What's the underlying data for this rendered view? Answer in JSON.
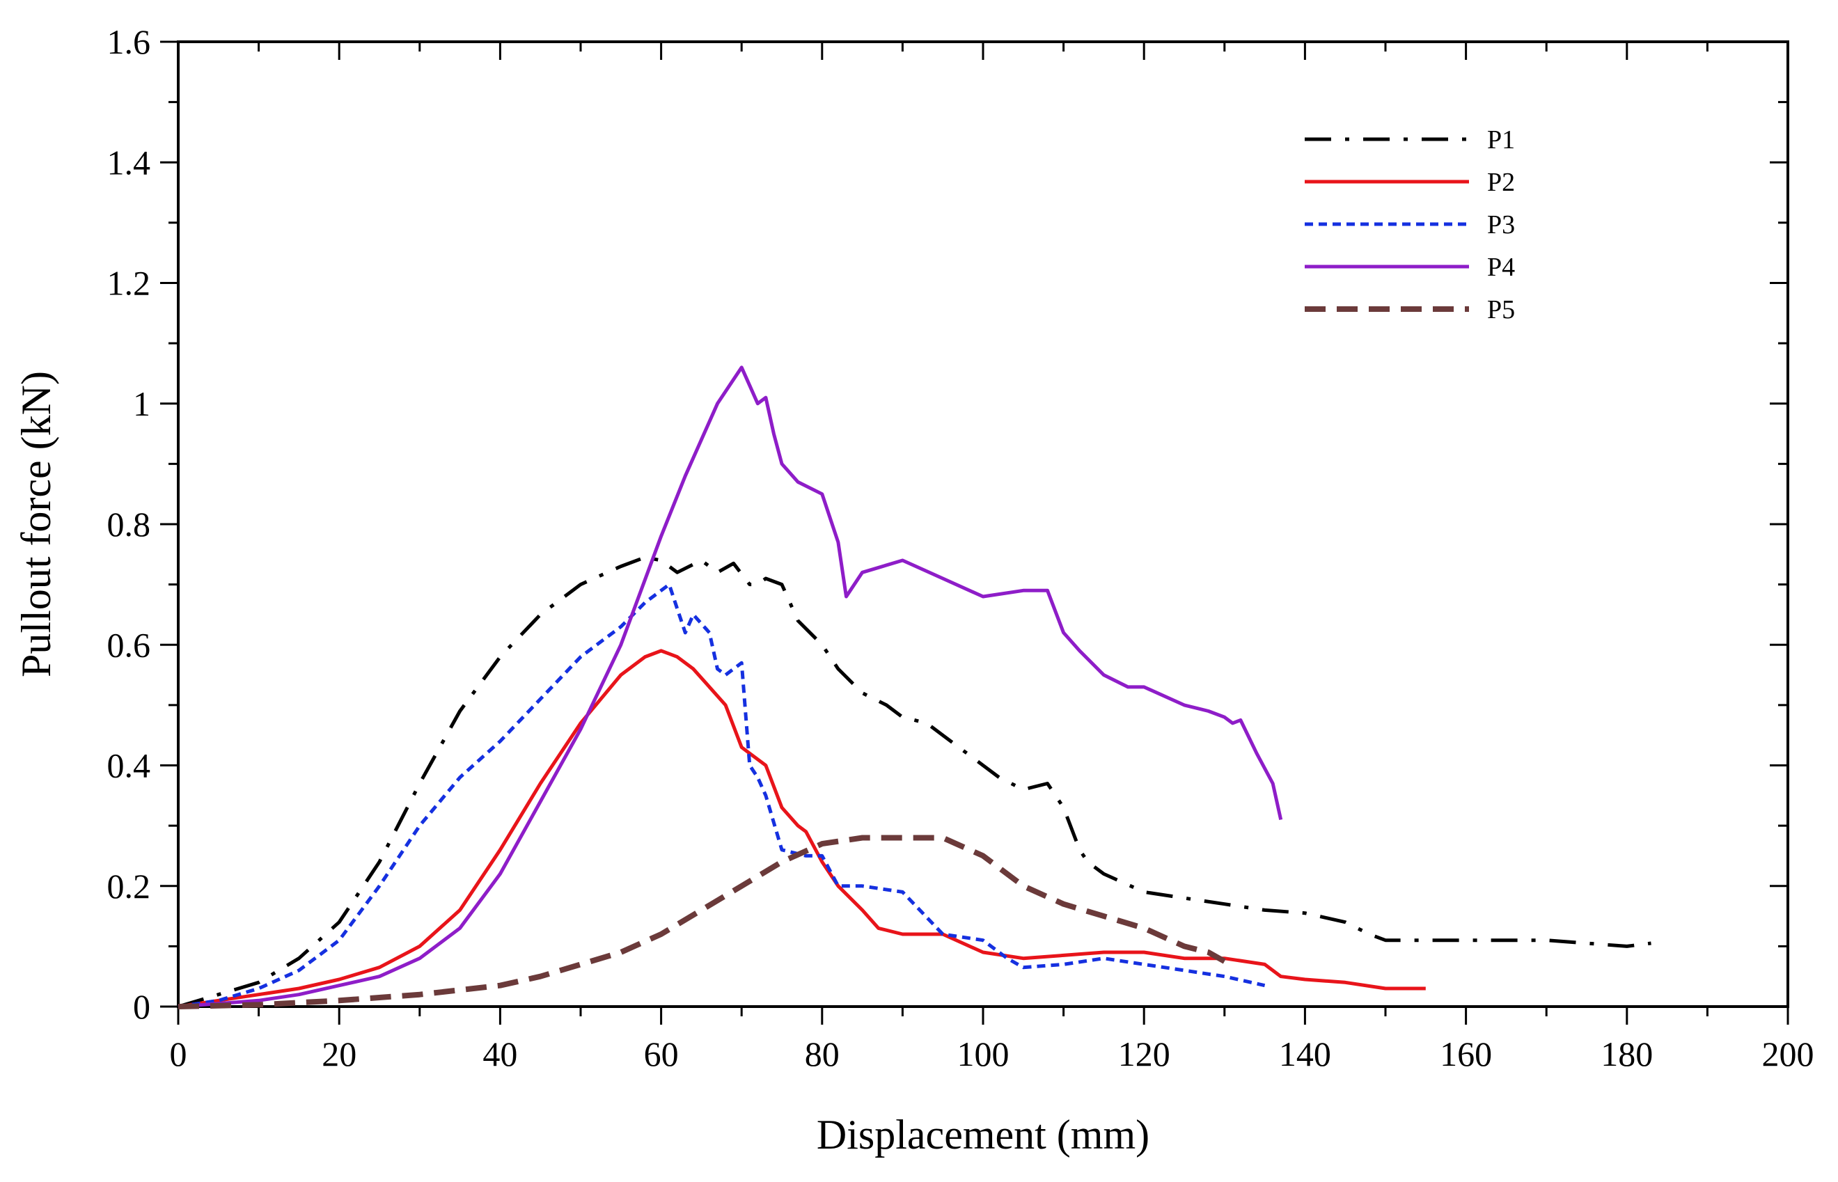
{
  "chart_data": {
    "type": "line",
    "title": "",
    "xlabel": "Displacement (mm)",
    "ylabel": "Pullout force (kN)",
    "xlim": [
      0,
      200
    ],
    "ylim": [
      0,
      1.6
    ],
    "xticks": [
      0,
      20,
      40,
      60,
      80,
      100,
      120,
      140,
      160,
      180,
      200
    ],
    "yticks": [
      0,
      0.2,
      0.4,
      0.6,
      0.8,
      1.0,
      1.2,
      1.4,
      1.6
    ],
    "xtick_labels": [
      "0",
      "20",
      "40",
      "60",
      "80",
      "100",
      "120",
      "140",
      "160",
      "180",
      "200"
    ],
    "ytick_labels": [
      "0",
      "0.2",
      "0.4",
      "0.6",
      "0.8",
      "1",
      "1.2",
      "1.4",
      "1.6"
    ],
    "grid": false,
    "legend_position": "top-right",
    "series": [
      {
        "name": "P1",
        "color": "#000000",
        "dash": "dashdot",
        "x": [
          0,
          5,
          10,
          15,
          20,
          25,
          30,
          35,
          40,
          45,
          50,
          55,
          58,
          60,
          62,
          65,
          67,
          69,
          71,
          72,
          73,
          75,
          77,
          80,
          82,
          85,
          88,
          90,
          93,
          95,
          98,
          100,
          102,
          105,
          108,
          110,
          112,
          113,
          115,
          120,
          125,
          130,
          135,
          140,
          145,
          148,
          150,
          155,
          160,
          170,
          175,
          180,
          183
        ],
        "y": [
          0,
          0.02,
          0.04,
          0.08,
          0.14,
          0.24,
          0.37,
          0.49,
          0.58,
          0.65,
          0.7,
          0.73,
          0.745,
          0.74,
          0.72,
          0.74,
          0.72,
          0.735,
          0.7,
          0.7,
          0.71,
          0.7,
          0.64,
          0.6,
          0.56,
          0.52,
          0.5,
          0.48,
          0.47,
          0.45,
          0.42,
          0.4,
          0.38,
          0.36,
          0.37,
          0.33,
          0.26,
          0.24,
          0.22,
          0.19,
          0.18,
          0.17,
          0.16,
          0.155,
          0.14,
          0.12,
          0.11,
          0.11,
          0.11,
          0.11,
          0.105,
          0.1,
          0.105
        ]
      },
      {
        "name": "P2",
        "color": "#e8141a",
        "dash": "solid",
        "x": [
          0,
          5,
          10,
          15,
          20,
          25,
          30,
          35,
          40,
          45,
          50,
          55,
          58,
          60,
          61,
          62,
          64,
          66,
          68,
          70,
          71,
          73,
          75,
          77,
          78,
          80,
          82,
          85,
          87,
          90,
          95,
          100,
          105,
          110,
          115,
          120,
          125,
          130,
          135,
          137,
          140,
          145,
          150,
          155
        ],
        "y": [
          0,
          0.01,
          0.02,
          0.03,
          0.045,
          0.065,
          0.1,
          0.16,
          0.26,
          0.37,
          0.47,
          0.55,
          0.58,
          0.59,
          0.585,
          0.58,
          0.56,
          0.53,
          0.5,
          0.43,
          0.42,
          0.4,
          0.33,
          0.3,
          0.29,
          0.24,
          0.2,
          0.16,
          0.13,
          0.12,
          0.12,
          0.09,
          0.08,
          0.085,
          0.09,
          0.09,
          0.08,
          0.08,
          0.07,
          0.05,
          0.045,
          0.04,
          0.03,
          0.03
        ]
      },
      {
        "name": "P3",
        "color": "#1530e0",
        "dash": "dotted",
        "x": [
          0,
          5,
          10,
          15,
          20,
          25,
          30,
          35,
          40,
          45,
          50,
          55,
          58,
          60,
          61,
          62,
          63,
          64,
          66,
          67,
          68,
          70,
          71,
          72,
          73,
          75,
          78,
          80,
          82,
          85,
          90,
          95,
          100,
          103,
          105,
          110,
          115,
          120,
          125,
          130,
          135
        ],
        "y": [
          0,
          0.01,
          0.03,
          0.06,
          0.11,
          0.2,
          0.3,
          0.38,
          0.44,
          0.51,
          0.58,
          0.63,
          0.67,
          0.69,
          0.7,
          0.66,
          0.62,
          0.65,
          0.62,
          0.56,
          0.55,
          0.57,
          0.4,
          0.38,
          0.35,
          0.26,
          0.25,
          0.25,
          0.2,
          0.2,
          0.19,
          0.12,
          0.11,
          0.08,
          0.065,
          0.07,
          0.08,
          0.07,
          0.06,
          0.05,
          0.035
        ]
      },
      {
        "name": "P4",
        "color": "#8e1dc8",
        "dash": "solid",
        "x": [
          0,
          5,
          10,
          15,
          20,
          25,
          30,
          35,
          40,
          45,
          50,
          55,
          60,
          63,
          65,
          67,
          69,
          70,
          71,
          72,
          73,
          74,
          75,
          77,
          80,
          82,
          83,
          85,
          90,
          95,
          100,
          105,
          108,
          110,
          112,
          115,
          118,
          120,
          125,
          128,
          130,
          131,
          132,
          134,
          136,
          137
        ],
        "y": [
          0,
          0.005,
          0.01,
          0.02,
          0.035,
          0.05,
          0.08,
          0.13,
          0.22,
          0.34,
          0.46,
          0.6,
          0.78,
          0.88,
          0.94,
          1.0,
          1.04,
          1.06,
          1.03,
          1.0,
          1.01,
          0.95,
          0.9,
          0.87,
          0.85,
          0.77,
          0.68,
          0.72,
          0.74,
          0.71,
          0.68,
          0.69,
          0.69,
          0.62,
          0.59,
          0.55,
          0.53,
          0.53,
          0.5,
          0.49,
          0.48,
          0.47,
          0.475,
          0.42,
          0.37,
          0.31
        ]
      },
      {
        "name": "P5",
        "color": "#6b3a3a",
        "dash": "dashed",
        "x": [
          0,
          10,
          20,
          30,
          40,
          45,
          50,
          55,
          60,
          65,
          70,
          75,
          80,
          85,
          90,
          95,
          100,
          105,
          110,
          115,
          120,
          125,
          128,
          130
        ],
        "y": [
          0,
          0.003,
          0.01,
          0.02,
          0.035,
          0.05,
          0.07,
          0.09,
          0.12,
          0.16,
          0.2,
          0.24,
          0.27,
          0.28,
          0.28,
          0.28,
          0.25,
          0.2,
          0.17,
          0.15,
          0.13,
          0.1,
          0.09,
          0.075
        ]
      }
    ]
  }
}
